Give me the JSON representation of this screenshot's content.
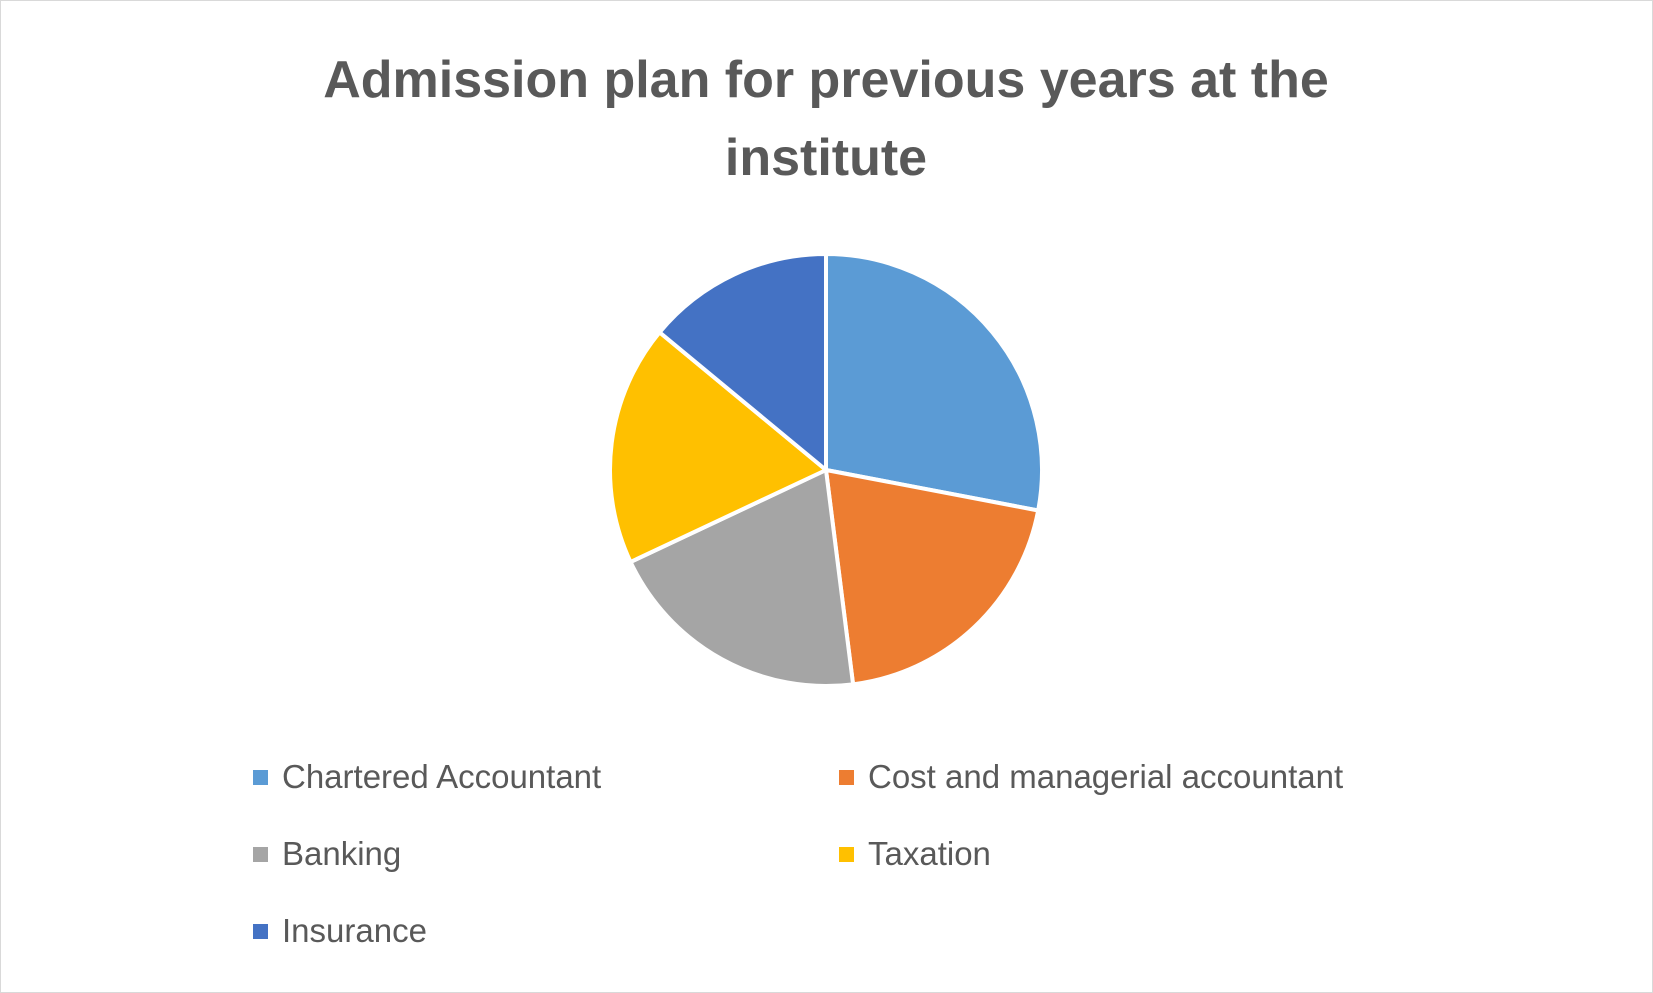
{
  "chart_data": {
    "type": "pie",
    "title": "Admission plan for previous years at the institute",
    "categories": [
      "Chartered Accountant",
      "Cost and managerial accountant",
      "Banking",
      "Taxation",
      "Insurance"
    ],
    "values": [
      28,
      20,
      20,
      18,
      14
    ],
    "colors": [
      "#5b9bd5",
      "#ed7d31",
      "#a5a5a5",
      "#ffc000",
      "#4472c4"
    ],
    "legend": "bottom"
  }
}
